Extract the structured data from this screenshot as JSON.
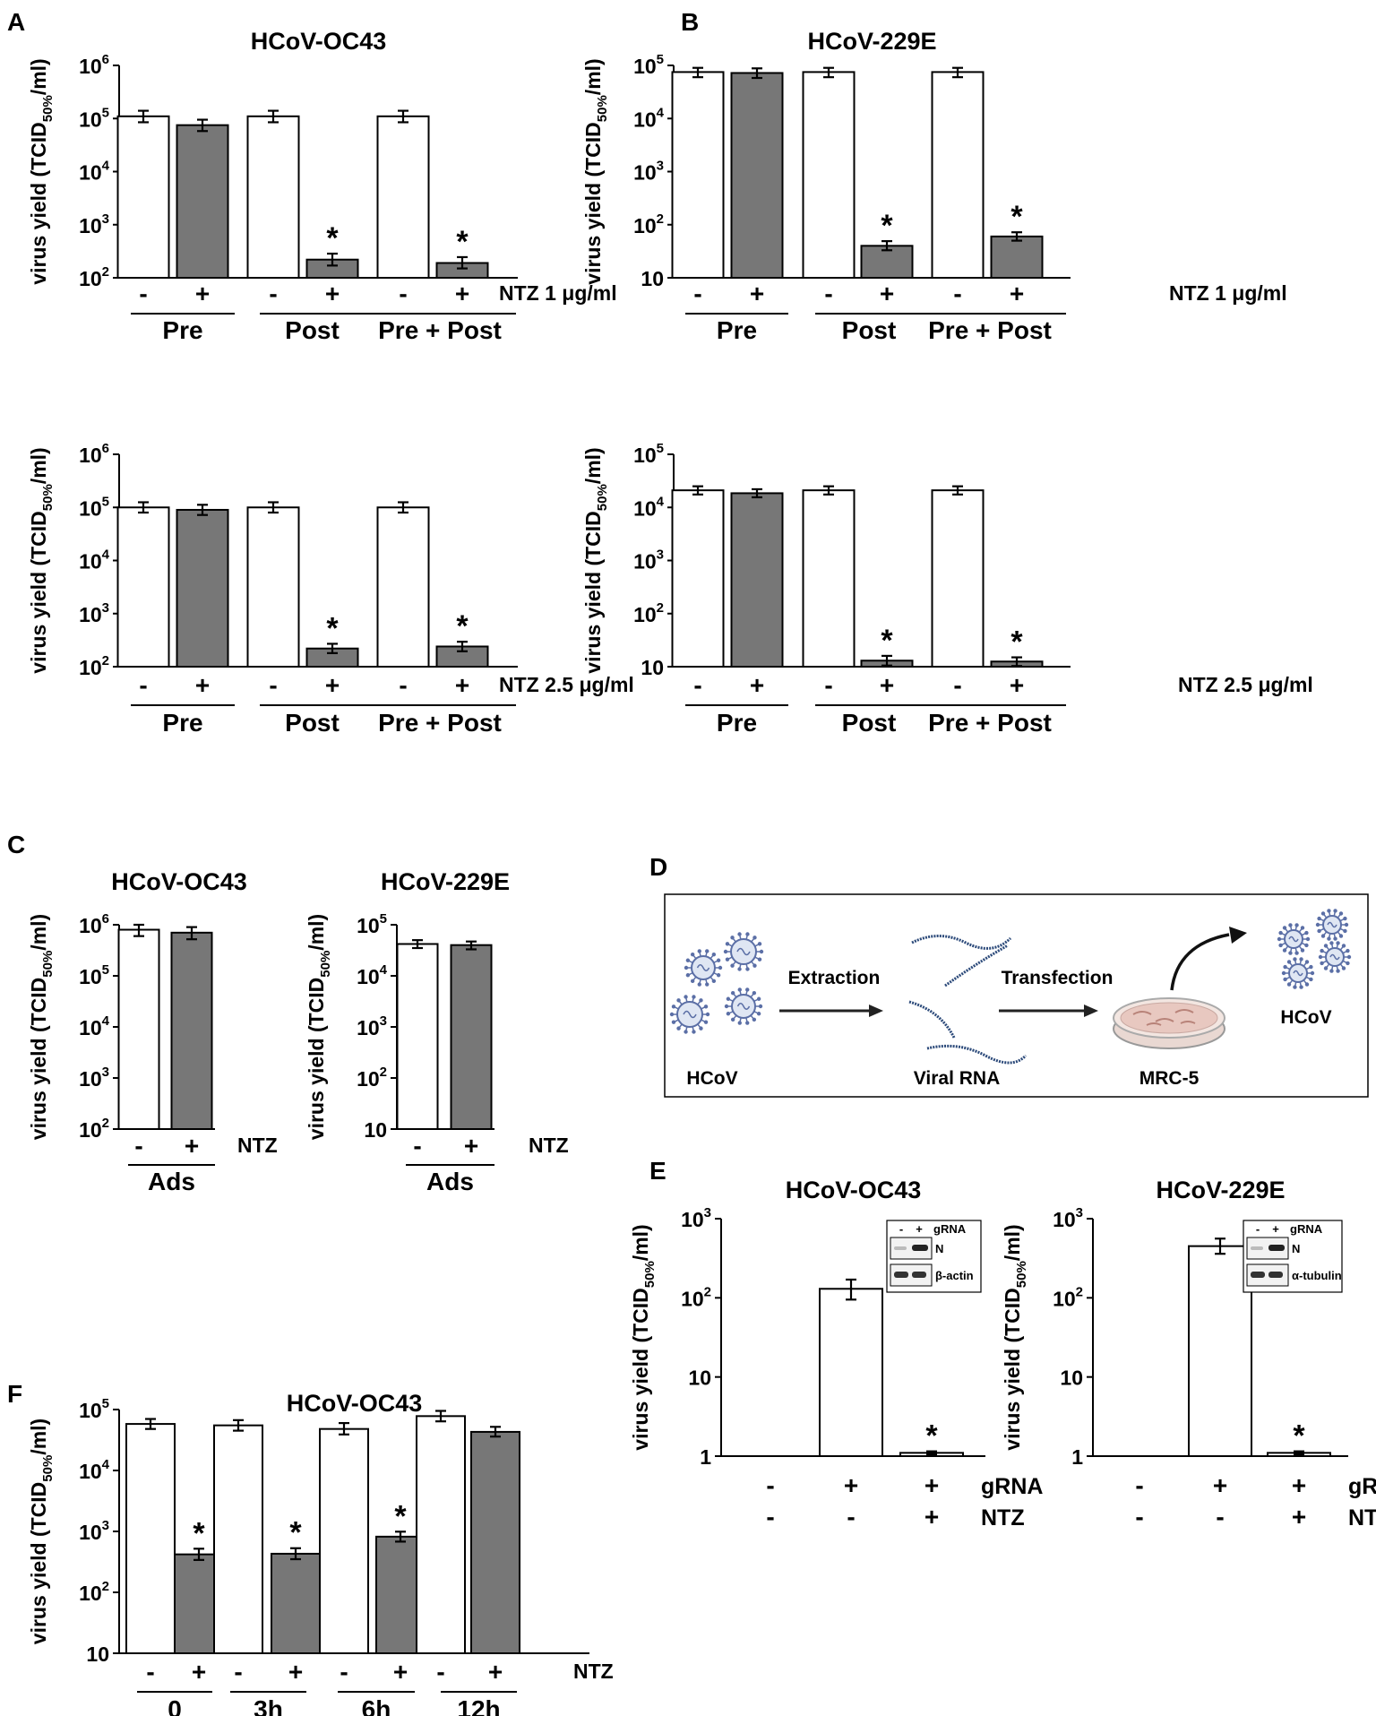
{
  "colors": {
    "white_bar": "#ffffff",
    "gray_bar": "#777777",
    "axis": "#000000",
    "rna": "#2c4a7a",
    "virus": "#5b6fa6"
  },
  "panels": [
    {
      "key": "A1",
      "letter": "A",
      "title": "HCoV-OC43",
      "ylabel_main": "virus yield (TCID",
      "ylabel_sub": "50%",
      "ylabel_end": "/ml)",
      "ymin_exp": 2,
      "ymax_exp": 6,
      "yticks": [
        {
          "e": 2,
          "b": "10",
          "s": "2"
        },
        {
          "e": 3,
          "b": "10",
          "s": "3"
        },
        {
          "e": 4,
          "b": "10",
          "s": "4"
        },
        {
          "e": 5,
          "b": "10",
          "s": "5"
        },
        {
          "e": 6,
          "b": "10",
          "s": "6"
        }
      ],
      "categories": [
        "-",
        "+",
        "-",
        "+",
        "-",
        "+"
      ],
      "values": [
        110000,
        75000,
        110000,
        220,
        110000,
        190
      ],
      "errors_low": [
        85000,
        58000,
        85000,
        170,
        85000,
        150
      ],
      "errors_high": [
        140000,
        95000,
        140000,
        285,
        140000,
        245
      ],
      "fills": [
        "white",
        "gray",
        "white",
        "gray",
        "white",
        "gray"
      ],
      "significant": [
        false,
        false,
        false,
        true,
        false,
        true
      ],
      "treatment": "NTZ 1 μg/ml",
      "groups": [
        "Pre",
        "Post",
        "Pre + Post"
      ]
    },
    {
      "key": "B1",
      "letter": "B",
      "title": "HCoV-229E",
      "ylabel_main": "virus yield (TCID",
      "ylabel_sub": "50%",
      "ylabel_end": "/ml)",
      "ymin_exp": 1,
      "ymax_exp": 5,
      "yticks": [
        {
          "e": 1,
          "b": "10",
          "s": ""
        },
        {
          "e": 2,
          "b": "10",
          "s": "2"
        },
        {
          "e": 3,
          "b": "10",
          "s": "3"
        },
        {
          "e": 4,
          "b": "10",
          "s": "4"
        },
        {
          "e": 5,
          "b": "10",
          "s": "5"
        }
      ],
      "categories": [
        "-",
        "+",
        "-",
        "+",
        "-",
        "+"
      ],
      "values": [
        75000,
        72000,
        75000,
        40,
        75000,
        60
      ],
      "errors_low": [
        60000,
        58000,
        60000,
        33,
        60000,
        50
      ],
      "errors_high": [
        90000,
        88000,
        90000,
        49,
        90000,
        72
      ],
      "fills": [
        "white",
        "gray",
        "white",
        "gray",
        "white",
        "gray"
      ],
      "significant": [
        false,
        false,
        false,
        true,
        false,
        true
      ],
      "treatment": "NTZ 1 μg/ml",
      "groups": [
        "Pre",
        "Post",
        "Pre + Post"
      ]
    },
    {
      "key": "A2",
      "letter": "",
      "title": "",
      "ylabel_main": "virus yield (TCID",
      "ylabel_sub": "50%",
      "ylabel_end": "/ml)",
      "ymin_exp": 2,
      "ymax_exp": 6,
      "yticks": [
        {
          "e": 2,
          "b": "10",
          "s": "2"
        },
        {
          "e": 3,
          "b": "10",
          "s": "3"
        },
        {
          "e": 4,
          "b": "10",
          "s": "4"
        },
        {
          "e": 5,
          "b": "10",
          "s": "5"
        },
        {
          "e": 6,
          "b": "10",
          "s": "6"
        }
      ],
      "categories": [
        "-",
        "+",
        "-",
        "+",
        "-",
        "+"
      ],
      "values": [
        100000,
        90000,
        100000,
        220,
        100000,
        240
      ],
      "errors_low": [
        80000,
        72000,
        80000,
        180,
        80000,
        195
      ],
      "errors_high": [
        125000,
        112000,
        125000,
        270,
        125000,
        295
      ],
      "fills": [
        "white",
        "gray",
        "white",
        "gray",
        "white",
        "gray"
      ],
      "significant": [
        false,
        false,
        false,
        true,
        false,
        true
      ],
      "treatment": "NTZ 2.5 μg/ml",
      "groups": [
        "Pre",
        "Post",
        "Pre + Post"
      ]
    },
    {
      "key": "B2",
      "letter": "",
      "title": "",
      "ylabel_main": "virus yield (TCID",
      "ylabel_sub": "50%",
      "ylabel_end": "/ml)",
      "ymin_exp": 1,
      "ymax_exp": 5,
      "yticks": [
        {
          "e": 1,
          "b": "10",
          "s": ""
        },
        {
          "e": 2,
          "b": "10",
          "s": "2"
        },
        {
          "e": 3,
          "b": "10",
          "s": "3"
        },
        {
          "e": 4,
          "b": "10",
          "s": "4"
        },
        {
          "e": 5,
          "b": "10",
          "s": "5"
        }
      ],
      "categories": [
        "-",
        "+",
        "-",
        "+",
        "-",
        "+"
      ],
      "values": [
        21000,
        18500,
        21000,
        13,
        21000,
        12.5
      ],
      "errors_low": [
        17500,
        15500,
        17500,
        10.5,
        17500,
        10.3
      ],
      "errors_high": [
        25000,
        22000,
        25000,
        16,
        25000,
        15
      ],
      "fills": [
        "white",
        "gray",
        "white",
        "gray",
        "white",
        "gray"
      ],
      "significant": [
        false,
        false,
        false,
        true,
        false,
        true
      ],
      "treatment": "NTZ 2.5 μg/ml",
      "groups": [
        "Pre",
        "Post",
        "Pre + Post"
      ]
    },
    {
      "key": "C1",
      "letter": "C",
      "title": "HCoV-OC43",
      "ylabel_main": "virus yield (TCID",
      "ylabel_sub": "50%",
      "ylabel_end": "/ml)",
      "ymin_exp": 2,
      "ymax_exp": 6,
      "yticks": [
        {
          "e": 2,
          "b": "10",
          "s": "2"
        },
        {
          "e": 3,
          "b": "10",
          "s": "3"
        },
        {
          "e": 4,
          "b": "10",
          "s": "4"
        },
        {
          "e": 5,
          "b": "10",
          "s": "5"
        },
        {
          "e": 6,
          "b": "10",
          "s": "6"
        }
      ],
      "categories": [
        "-",
        "+"
      ],
      "values": [
        800000,
        700000
      ],
      "errors_low": [
        600000,
        520000
      ],
      "errors_high": [
        1000000,
        900000
      ],
      "fills": [
        "white",
        "gray"
      ],
      "significant": [
        false,
        false
      ],
      "treatment": "NTZ",
      "groups": [
        "Ads"
      ]
    },
    {
      "key": "C2",
      "letter": "",
      "title": "HCoV-229E",
      "ylabel_main": "virus yield (TCID",
      "ylabel_sub": "50%",
      "ylabel_end": "/ml)",
      "ymin_exp": 1,
      "ymax_exp": 5,
      "yticks": [
        {
          "e": 1,
          "b": "10",
          "s": ""
        },
        {
          "e": 2,
          "b": "10",
          "s": "2"
        },
        {
          "e": 3,
          "b": "10",
          "s": "3"
        },
        {
          "e": 4,
          "b": "10",
          "s": "4"
        },
        {
          "e": 5,
          "b": "10",
          "s": "5"
        }
      ],
      "categories": [
        "-",
        "+"
      ],
      "values": [
        42000,
        40000
      ],
      "errors_low": [
        35000,
        33000
      ],
      "errors_high": [
        50000,
        47000
      ],
      "fills": [
        "white",
        "gray"
      ],
      "significant": [
        false,
        false
      ],
      "treatment": "NTZ",
      "groups": [
        "Ads"
      ]
    },
    {
      "key": "E1",
      "letter": "E",
      "title": "HCoV-OC43",
      "ylabel_main": "virus yield (TCID",
      "ylabel_sub": "50%",
      "ylabel_end": "/ml)",
      "ymin_exp": 0,
      "ymax_exp": 3,
      "yticks": [
        {
          "e": 0,
          "b": "1",
          "s": ""
        },
        {
          "e": 1,
          "b": "10",
          "s": ""
        },
        {
          "e": 2,
          "b": "10",
          "s": "2"
        },
        {
          "e": 3,
          "b": "10",
          "s": "3"
        }
      ],
      "categories": [
        "-",
        "+",
        "+"
      ],
      "values": [
        null,
        130,
        1.1
      ],
      "errors_low": [
        null,
        95,
        1.05
      ],
      "errors_high": [
        null,
        170,
        1.15
      ],
      "fills": [
        "white",
        "white",
        "white"
      ],
      "significant": [
        false,
        false,
        true
      ],
      "row1": [
        "-",
        "+",
        "+"
      ],
      "row2": [
        "-",
        "-",
        "+"
      ],
      "row1_label": "gRNA",
      "row2_label": "NTZ",
      "inset": {
        "header": [
          "-",
          "+",
          "gRNA"
        ],
        "band1": "N",
        "band2": "β-actin"
      }
    },
    {
      "key": "E2",
      "letter": "",
      "title": "HCoV-229E",
      "ylabel_main": "virus yield (TCID",
      "ylabel_sub": "50%",
      "ylabel_end": "/ml)",
      "ymin_exp": 0,
      "ymax_exp": 3,
      "yticks": [
        {
          "e": 0,
          "b": "1",
          "s": ""
        },
        {
          "e": 1,
          "b": "10",
          "s": ""
        },
        {
          "e": 2,
          "b": "10",
          "s": "2"
        },
        {
          "e": 3,
          "b": "10",
          "s": "3"
        }
      ],
      "categories": [
        "-",
        "+",
        "+"
      ],
      "values": [
        null,
        450,
        1.1
      ],
      "errors_low": [
        null,
        360,
        1.05
      ],
      "errors_high": [
        null,
        560,
        1.15
      ],
      "fills": [
        "white",
        "white",
        "white"
      ],
      "significant": [
        false,
        false,
        true
      ],
      "row1": [
        "-",
        "+",
        "+"
      ],
      "row2": [
        "-",
        "-",
        "+"
      ],
      "row1_label": "gRNA",
      "row2_label": "NTZ",
      "inset": {
        "header": [
          "-",
          "+",
          "gRNA"
        ],
        "band1": "N",
        "band2": "α-tubulin"
      }
    },
    {
      "key": "F1",
      "letter": "F",
      "title": "HCoV-OC43",
      "ylabel_main": "virus yield (TCID",
      "ylabel_sub": "50%",
      "ylabel_end": "/ml)",
      "ymin_exp": 1,
      "ymax_exp": 5,
      "yticks": [
        {
          "e": 1,
          "b": "10",
          "s": ""
        },
        {
          "e": 2,
          "b": "10",
          "s": "2"
        },
        {
          "e": 3,
          "b": "10",
          "s": "3"
        },
        {
          "e": 4,
          "b": "10",
          "s": "4"
        },
        {
          "e": 5,
          "b": "10",
          "s": "5"
        }
      ],
      "categories": [
        "-",
        "+",
        "-",
        "+",
        "-",
        "+",
        "-",
        "+"
      ],
      "values": [
        58000,
        420,
        55000,
        430,
        48000,
        820,
        78000,
        43000
      ],
      "errors_low": [
        48000,
        340,
        45000,
        350,
        39000,
        680,
        64000,
        36000
      ],
      "errors_high": [
        70000,
        520,
        67000,
        530,
        60000,
        990,
        95000,
        52000
      ],
      "fills": [
        "white",
        "gray",
        "white",
        "gray",
        "white",
        "gray",
        "white",
        "gray"
      ],
      "significant": [
        false,
        true,
        false,
        true,
        false,
        true,
        false,
        false
      ],
      "treatment": "NTZ",
      "groups": [
        "0",
        "3h",
        "6h",
        "12h"
      ]
    }
  ],
  "panel_d": {
    "letter": "D",
    "labels": {
      "hcov_left": "HCoV",
      "extraction": "Extraction",
      "viral_rna": "Viral RNA",
      "transfection": "Transfection",
      "mrc5": "MRC-5",
      "hcov_right": "HCoV"
    }
  }
}
